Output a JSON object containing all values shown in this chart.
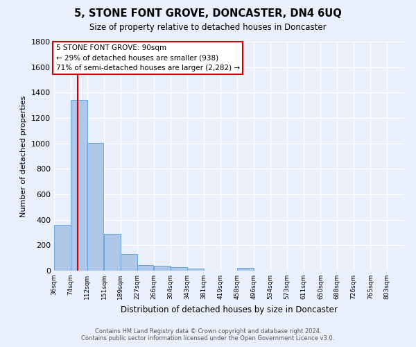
{
  "title": "5, STONE FONT GROVE, DONCASTER, DN4 6UQ",
  "subtitle": "Size of property relative to detached houses in Doncaster",
  "xlabel": "Distribution of detached houses by size in Doncaster",
  "ylabel": "Number of detached properties",
  "footer_line1": "Contains HM Land Registry data © Crown copyright and database right 2024.",
  "footer_line2": "Contains public sector information licensed under the Open Government Licence v3.0.",
  "bin_labels": [
    "36sqm",
    "74sqm",
    "112sqm",
    "151sqm",
    "189sqm",
    "227sqm",
    "266sqm",
    "304sqm",
    "343sqm",
    "381sqm",
    "419sqm",
    "458sqm",
    "496sqm",
    "534sqm",
    "573sqm",
    "611sqm",
    "650sqm",
    "688sqm",
    "726sqm",
    "765sqm",
    "803sqm"
  ],
  "bar_values": [
    360,
    1340,
    1005,
    290,
    130,
    42,
    38,
    25,
    18,
    0,
    0,
    22,
    0,
    0,
    0,
    0,
    0,
    0,
    0,
    0,
    0
  ],
  "bar_color": "#aec6e8",
  "bar_edge_color": "#5b9bd5",
  "bg_color": "#eaf0fb",
  "grid_color": "#ffffff",
  "red_line_color": "#cc0000",
  "annotation_box_color": "#ffffff",
  "annotation_box_edge": "#cc0000",
  "bin_edges": [
    36,
    74,
    112,
    151,
    189,
    227,
    266,
    304,
    343,
    381,
    419,
    458,
    496,
    534,
    573,
    611,
    650,
    688,
    726,
    765,
    803
  ],
  "bin_width": 38,
  "property_size": 90,
  "annotation_text_line1": "5 STONE FONT GROVE: 90sqm",
  "annotation_text_line2": "← 29% of detached houses are smaller (938)",
  "annotation_text_line3": "71% of semi-detached houses are larger (2,282) →",
  "ylim": [
    0,
    1800
  ],
  "yticks": [
    0,
    200,
    400,
    600,
    800,
    1000,
    1200,
    1400,
    1600,
    1800
  ]
}
